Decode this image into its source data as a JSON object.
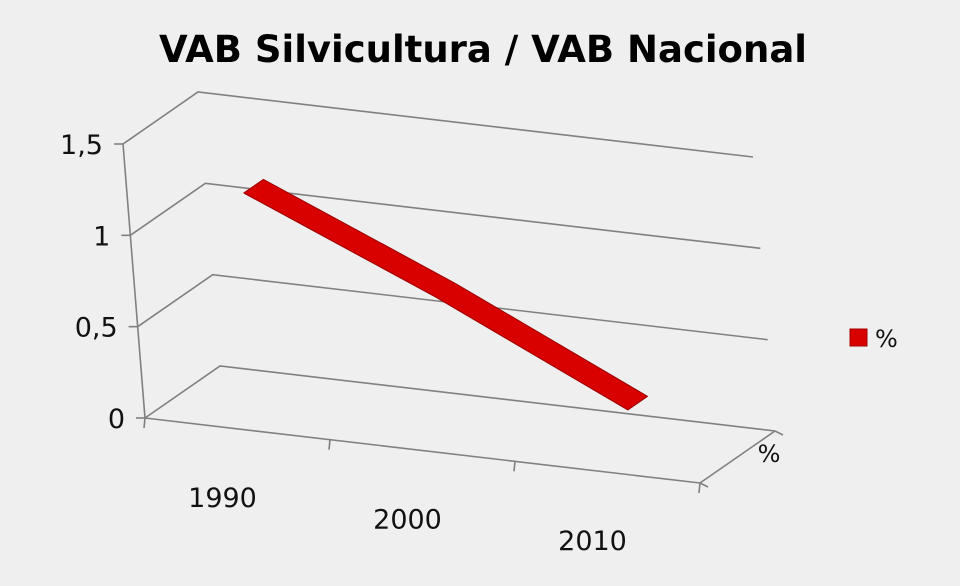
{
  "chart_data": {
    "type": "line",
    "title": "VAB Silvicultura / VAB Nacional",
    "categories": [
      "1990",
      "2000",
      "2010"
    ],
    "series": [
      {
        "name": "%",
        "values": [
          1.2,
          0.75,
          0.25
        ],
        "color": "#d90000"
      }
    ],
    "depth_axis_label": "%",
    "ylim": [
      0,
      1.5
    ],
    "yticks": [
      "0",
      "0,5",
      "1",
      "1,5"
    ],
    "ytick_values": [
      0,
      0.5,
      1,
      1.5
    ],
    "grid": true,
    "legend": {
      "position": "right",
      "entries": [
        "%"
      ]
    },
    "style": "3d-line"
  }
}
